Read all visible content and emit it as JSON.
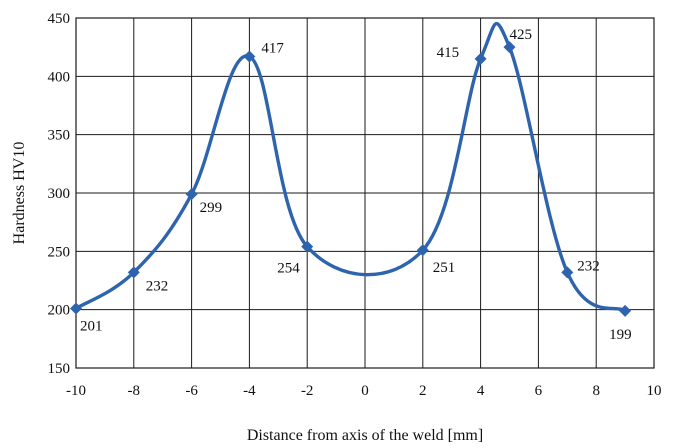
{
  "chart_data": {
    "type": "line",
    "title": "",
    "xlabel": "Distance from axis of the weld [mm]",
    "ylabel": "Hardness HV10",
    "xlim": [
      -10,
      10
    ],
    "ylim": [
      150,
      450
    ],
    "xticks": [
      -10,
      -8,
      -6,
      -4,
      -2,
      0,
      2,
      4,
      6,
      8,
      10
    ],
    "yticks": [
      150,
      200,
      250,
      300,
      350,
      400,
      450
    ],
    "grid": true,
    "smooth": true,
    "marker": "diamond",
    "series_color": "#2e64ad",
    "series": [
      {
        "x": [
          -10,
          -8,
          -6,
          -4,
          -2,
          2,
          4,
          5,
          7,
          9
        ],
        "values": [
          201,
          232,
          299,
          417,
          254,
          251,
          415,
          425,
          232,
          199
        ],
        "labels": [
          "201",
          "232",
          "299",
          "417",
          "254",
          "251",
          "415",
          "425",
          "232",
          "199"
        ]
      }
    ]
  }
}
